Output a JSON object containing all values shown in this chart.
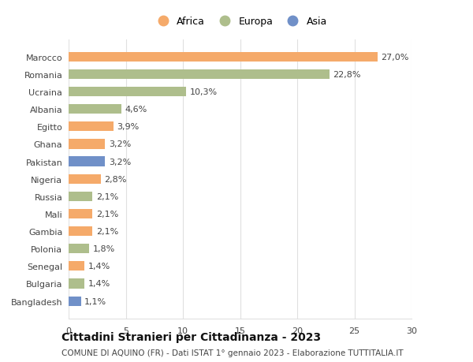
{
  "countries": [
    "Marocco",
    "Romania",
    "Ucraina",
    "Albania",
    "Egitto",
    "Ghana",
    "Pakistan",
    "Nigeria",
    "Russia",
    "Mali",
    "Gambia",
    "Polonia",
    "Senegal",
    "Bulgaria",
    "Bangladesh"
  ],
  "values": [
    27.0,
    22.8,
    10.3,
    4.6,
    3.9,
    3.2,
    3.2,
    2.8,
    2.1,
    2.1,
    2.1,
    1.8,
    1.4,
    1.4,
    1.1
  ],
  "labels": [
    "27,0%",
    "22,8%",
    "10,3%",
    "4,6%",
    "3,9%",
    "3,2%",
    "3,2%",
    "2,8%",
    "2,1%",
    "2,1%",
    "2,1%",
    "1,8%",
    "1,4%",
    "1,4%",
    "1,1%"
  ],
  "continents": [
    "Africa",
    "Europa",
    "Europa",
    "Europa",
    "Africa",
    "Africa",
    "Asia",
    "Africa",
    "Europa",
    "Africa",
    "Africa",
    "Europa",
    "Africa",
    "Europa",
    "Asia"
  ],
  "colors": {
    "Africa": "#F5AA6A",
    "Europa": "#AEBE8C",
    "Asia": "#7090C8"
  },
  "title1": "Cittadini Stranieri per Cittadinanza - 2023",
  "title2": "COMUNE DI AQUINO (FR) - Dati ISTAT 1° gennaio 2023 - Elaborazione TUTTITALIA.IT",
  "xlim": [
    0,
    30
  ],
  "xticks": [
    0,
    5,
    10,
    15,
    20,
    25,
    30
  ],
  "background_color": "#ffffff",
  "bar_height": 0.55,
  "grid_color": "#e0e0e0",
  "label_fontsize": 8,
  "tick_fontsize": 8,
  "ytick_fontsize": 8,
  "legend_fontsize": 9,
  "title1_fontsize": 10,
  "title2_fontsize": 7.5
}
